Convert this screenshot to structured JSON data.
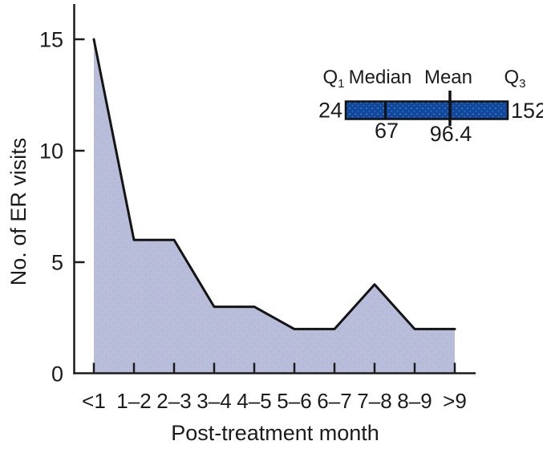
{
  "figure": {
    "background": "#ffffff",
    "text_color": "#1c1c1c",
    "axis_color": "#1c1c1c"
  },
  "chart_data": {
    "type": "area",
    "title": "",
    "categories": [
      "<1",
      "1–2",
      "2–3",
      "3–4",
      "4–5",
      "5–6",
      "6–7",
      "7–8",
      "8–9",
      ">9"
    ],
    "values": [
      15,
      6,
      6,
      3,
      3,
      2,
      2,
      4,
      2,
      2
    ],
    "xlabel": "Post-treatment month",
    "ylabel": "No. of ER visits",
    "yticks": [
      0,
      5,
      10,
      15
    ],
    "ylim": [
      0,
      16.5
    ],
    "grid": false,
    "legend": "none",
    "fill_color": "#b7bdda",
    "fill_dot_color": "#c09a78",
    "line_color": "#141414",
    "summary_inset": {
      "position": "top-right",
      "bar_color": "#10489c",
      "bar_dot_color": "#5b86d2",
      "q1": {
        "label": "Q",
        "sub": "1",
        "value": "24"
      },
      "median": {
        "label": "Median",
        "value": "67"
      },
      "mean": {
        "label": "Mean",
        "value": "96.4"
      },
      "q3": {
        "label": "Q",
        "sub": "3",
        "value": "152"
      }
    }
  }
}
